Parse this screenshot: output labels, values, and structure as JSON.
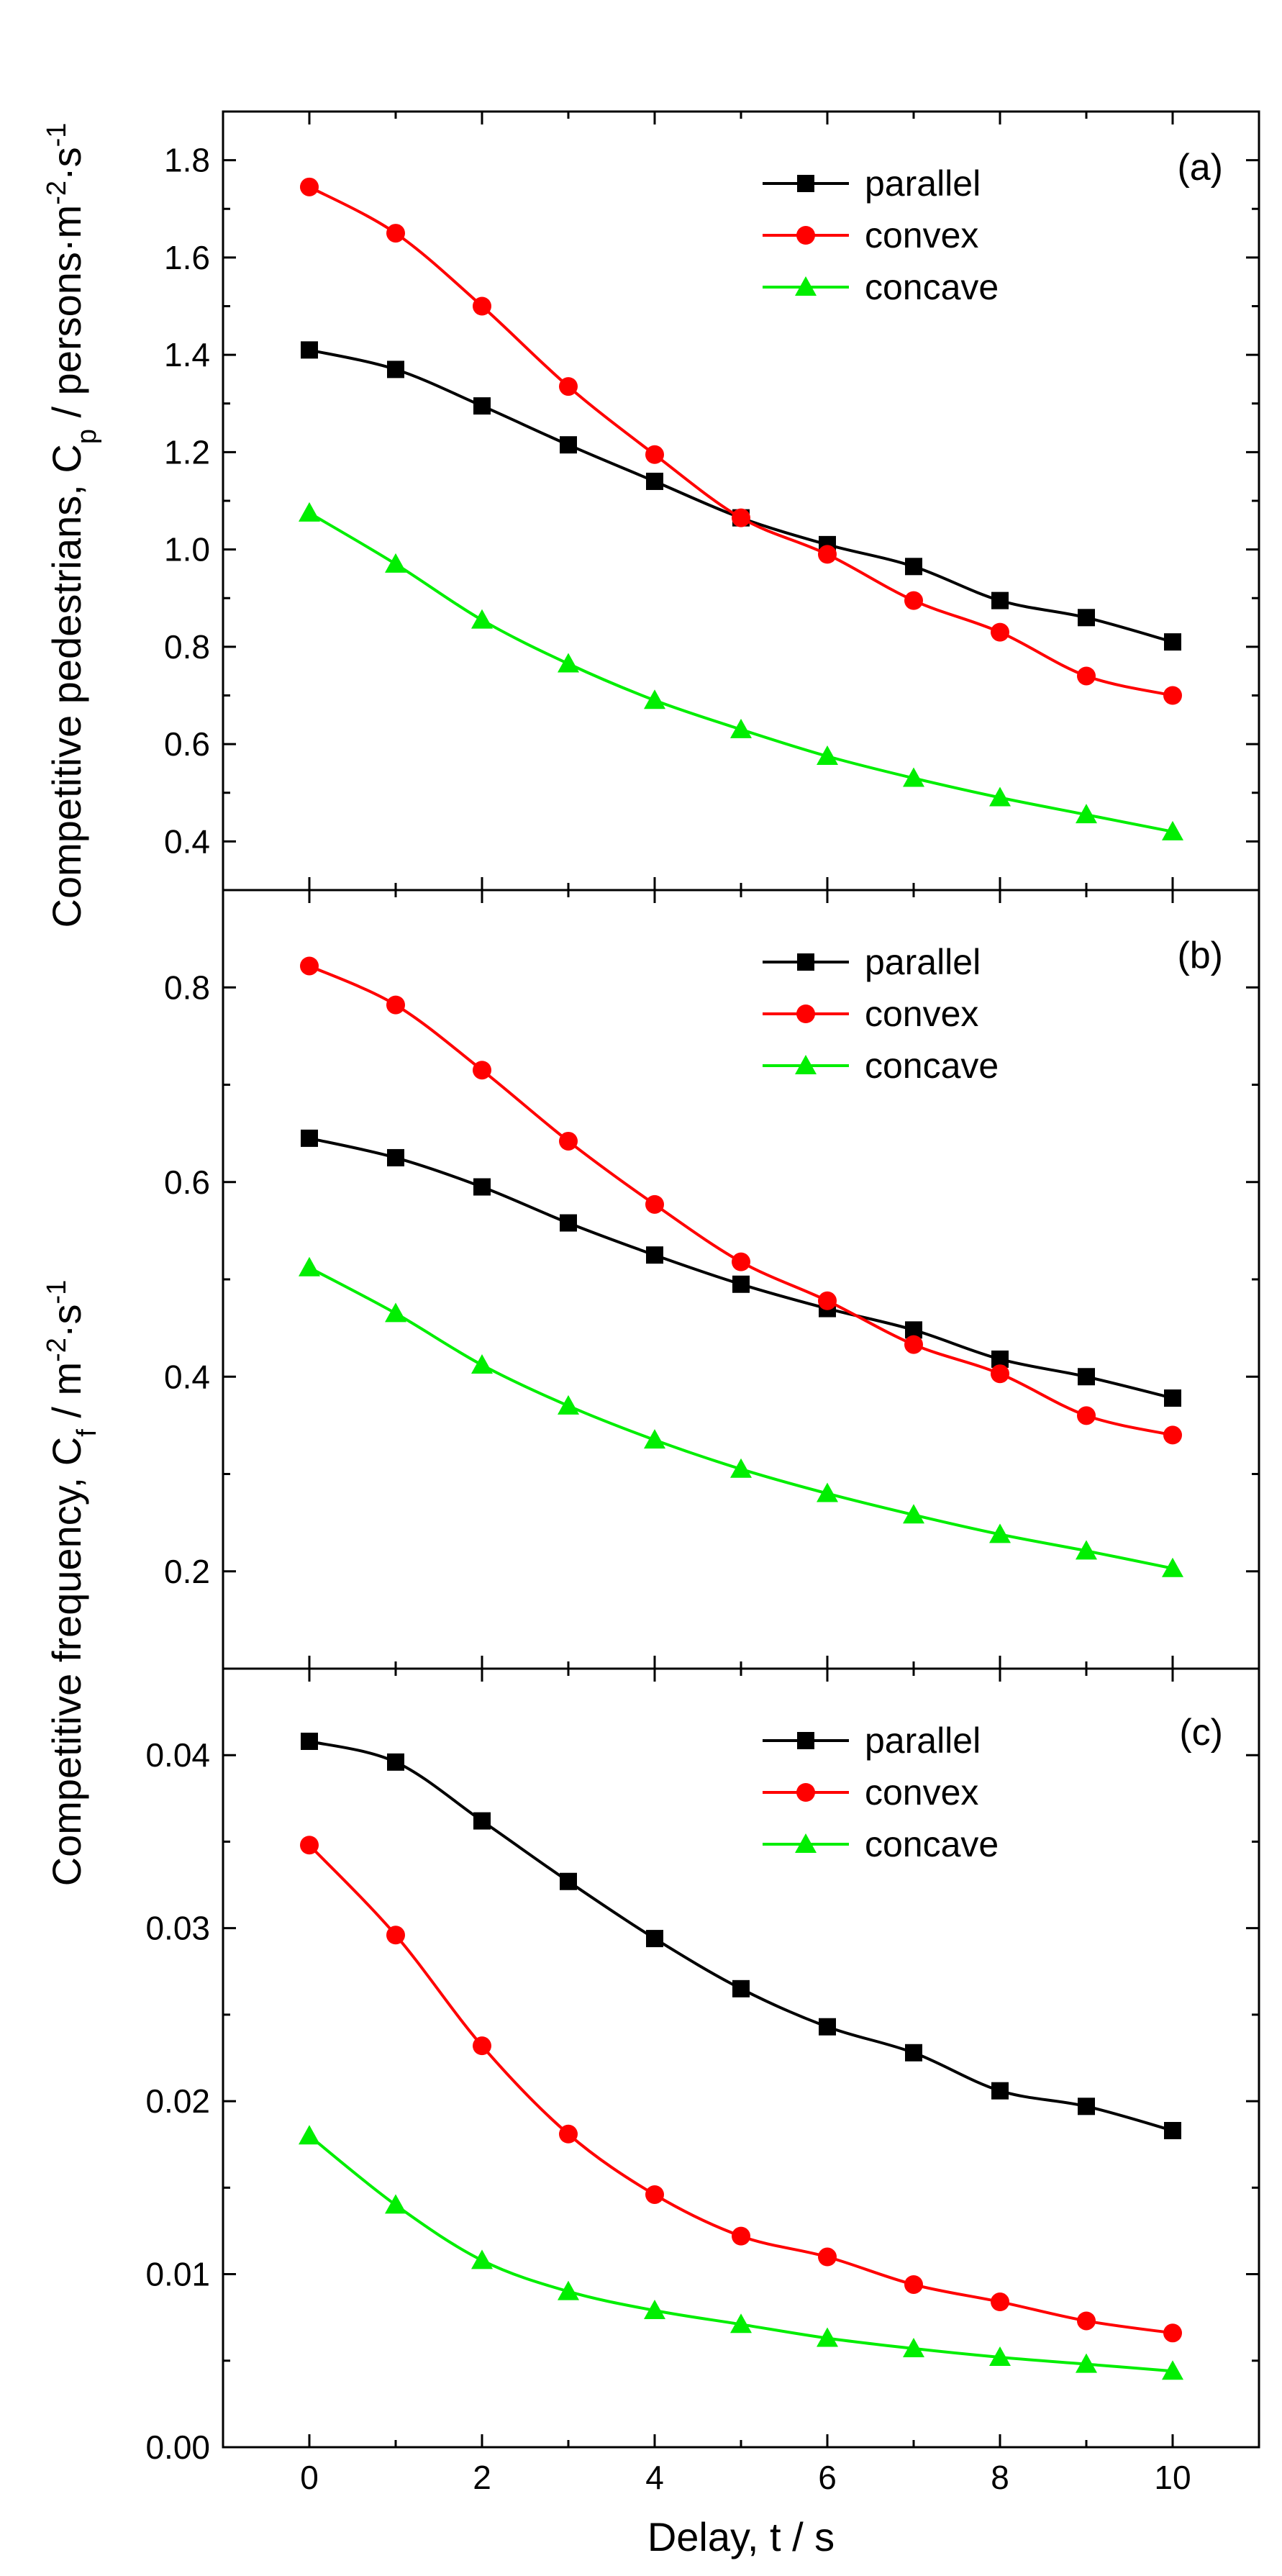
{
  "chart_data": [
    {
      "type": "line",
      "panel_label": "(a)",
      "ylabel": "Competitive pedestrians, C",
      "ylabel_sub": "p",
      "ylabel_unit": " / persons·m",
      "ylabel_sup1": "-2",
      "ylabel_unit2": "·s",
      "ylabel_sup2": "-1",
      "ylim": [
        0.3,
        1.9
      ],
      "yticks": [
        0.4,
        0.6,
        0.8,
        1.0,
        1.2,
        1.4,
        1.6,
        1.8
      ],
      "ytick_labels": [
        "0.4",
        "0.6",
        "0.8",
        "1.0",
        "1.2",
        "1.4",
        "1.6",
        "1.8"
      ],
      "legend_position": "top-right",
      "series": [
        {
          "name": "parallel",
          "color": "#000000",
          "marker": "square",
          "values": [
            1.41,
            1.37,
            1.295,
            1.215,
            1.14,
            1.065,
            1.01,
            0.965,
            0.895,
            0.86,
            0.81
          ]
        },
        {
          "name": "convex",
          "color": "#ff0000",
          "marker": "circle",
          "values": [
            1.745,
            1.65,
            1.5,
            1.335,
            1.195,
            1.065,
            0.99,
            0.895,
            0.83,
            0.74,
            0.7
          ]
        },
        {
          "name": "concave",
          "color": "#00ee00",
          "marker": "triangle",
          "values": [
            1.075,
            0.97,
            0.855,
            0.765,
            0.69,
            0.63,
            0.575,
            0.53,
            0.49,
            0.455,
            0.42
          ]
        }
      ]
    },
    {
      "type": "line",
      "panel_label": "(b)",
      "ylabel": "Competitive frequency, C",
      "ylabel_sub": "f",
      "ylabel_unit": " / m",
      "ylabel_sup1": "-2",
      "ylabel_unit2": "·s",
      "ylabel_sup2": "-1",
      "ylim": [
        0.1,
        0.9
      ],
      "yticks": [
        0.2,
        0.4,
        0.6,
        0.8
      ],
      "ytick_labels": [
        "0.2",
        "0.4",
        "0.6",
        "0.8"
      ],
      "legend_position": "top-right",
      "series": [
        {
          "name": "parallel",
          "color": "#000000",
          "marker": "square",
          "values": [
            0.645,
            0.625,
            0.595,
            0.558,
            0.525,
            0.495,
            0.47,
            0.448,
            0.418,
            0.4,
            0.378
          ]
        },
        {
          "name": "convex",
          "color": "#ff0000",
          "marker": "circle",
          "values": [
            0.822,
            0.782,
            0.715,
            0.642,
            0.577,
            0.518,
            0.478,
            0.433,
            0.403,
            0.36,
            0.34
          ]
        },
        {
          "name": "concave",
          "color": "#00ee00",
          "marker": "triangle",
          "values": [
            0.512,
            0.465,
            0.412,
            0.37,
            0.335,
            0.305,
            0.28,
            0.258,
            0.238,
            0.221,
            0.203
          ]
        }
      ]
    },
    {
      "type": "line",
      "panel_label": "(c)",
      "ylim": [
        0.0,
        0.045
      ],
      "yticks": [
        0.0,
        0.01,
        0.02,
        0.03,
        0.04
      ],
      "ytick_labels": [
        "0.00",
        "0.01",
        "0.02",
        "0.03",
        "0.04"
      ],
      "xlabel": "Delay, t / s",
      "xlim": [
        -1,
        11
      ],
      "x": [
        0,
        1,
        2,
        3,
        4,
        5,
        6,
        7,
        8,
        9,
        10
      ],
      "xticks": [
        0,
        2,
        4,
        6,
        8,
        10
      ],
      "xtick_labels": [
        "0",
        "2",
        "4",
        "6",
        "8",
        "10"
      ],
      "legend_position": "top-right",
      "series": [
        {
          "name": "parallel",
          "color": "#000000",
          "marker": "square",
          "values": [
            0.0408,
            0.0396,
            0.0362,
            0.0327,
            0.0294,
            0.0265,
            0.0243,
            0.0228,
            0.0206,
            0.0197,
            0.0183
          ]
        },
        {
          "name": "convex",
          "color": "#ff0000",
          "marker": "circle",
          "values": [
            0.0348,
            0.0296,
            0.0232,
            0.0181,
            0.0146,
            0.0122,
            0.011,
            0.0094,
            0.0084,
            0.0073,
            0.0066
          ]
        },
        {
          "name": "concave",
          "color": "#00ee00",
          "marker": "triangle",
          "values": [
            0.018,
            0.014,
            0.0108,
            0.009,
            0.0079,
            0.0071,
            0.0063,
            0.0057,
            0.0052,
            0.0048,
            0.0044
          ]
        }
      ]
    }
  ]
}
